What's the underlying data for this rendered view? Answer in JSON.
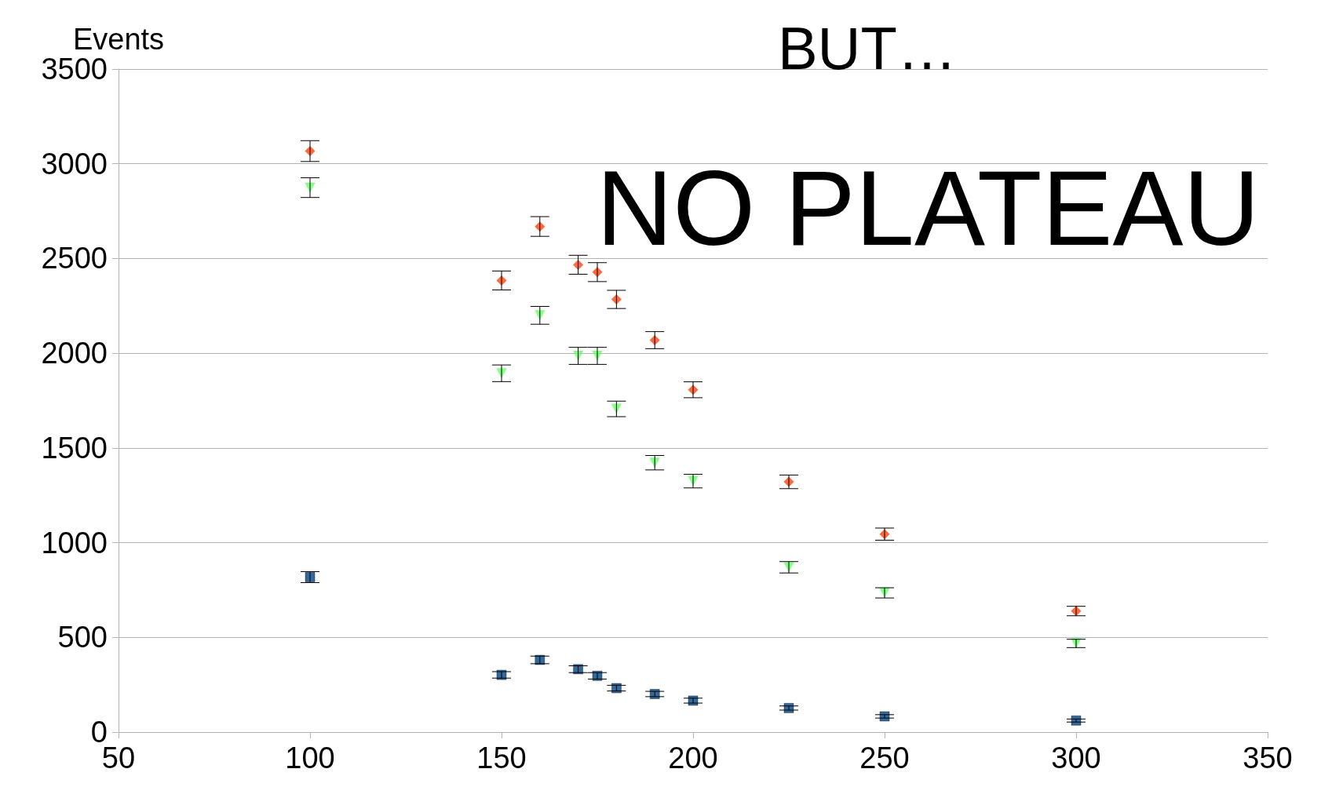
{
  "chart_data": {
    "type": "scatter",
    "title": "BUT…",
    "ylabel": "Events",
    "annotations": [
      "NO PLATEAU"
    ],
    "xlim": [
      50,
      350
    ],
    "xticks": [
      50,
      100,
      150,
      200,
      250,
      300,
      350
    ],
    "ylim": [
      0,
      3500
    ],
    "yticks": [
      0,
      500,
      1000,
      1500,
      2000,
      2500,
      3000,
      3500
    ],
    "grid": "y",
    "x": [
      100,
      150,
      160,
      170,
      175,
      180,
      190,
      200,
      225,
      250,
      300
    ],
    "series": [
      {
        "color": "#ff420e",
        "marker": "diamond",
        "values": [
          3067,
          2384,
          2669,
          2467,
          2428,
          2284,
          2069,
          1807,
          1321,
          1045,
          639
        ],
        "errors": [
          55,
          50,
          52,
          50,
          50,
          48,
          45,
          42,
          36,
          32,
          25
        ]
      },
      {
        "color": "#66ff66",
        "marker": "triangle",
        "values": [
          2874,
          1894,
          2200,
          1986,
          1986,
          1706,
          1422,
          1325,
          870,
          735,
          468
        ],
        "errors": [
          52,
          44,
          47,
          45,
          45,
          41,
          38,
          36,
          30,
          27,
          22
        ]
      },
      {
        "color": "#004586",
        "marker": "square",
        "values": [
          818,
          302,
          381,
          332,
          297,
          232,
          201,
          166,
          127,
          83,
          61
        ],
        "errors": [
          29,
          17,
          20,
          18,
          17,
          15,
          14,
          13,
          11,
          9,
          8
        ]
      }
    ]
  }
}
